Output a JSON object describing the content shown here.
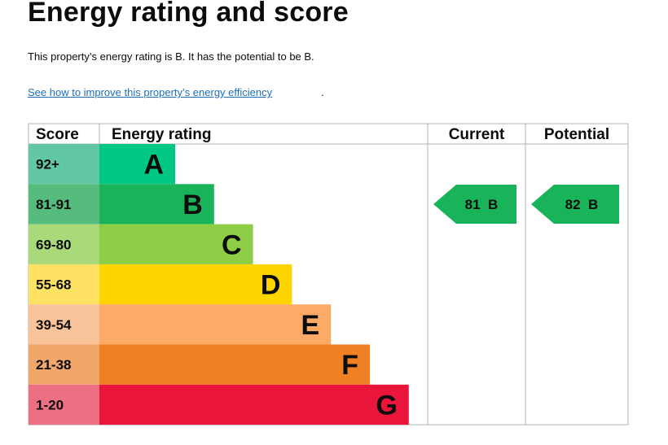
{
  "page": {
    "title": "Energy rating and score",
    "summary": "This property’s energy rating is B. It has the potential to be B.",
    "improve_link": "See how to improve this property’s energy efficiency",
    "link_trailing": "."
  },
  "chart_data": {
    "type": "bar",
    "headers": {
      "score": "Score",
      "rating": "Energy rating",
      "current": "Current",
      "potential": "Potential"
    },
    "bands": [
      {
        "score_range": "92+",
        "letter": "A",
        "color": "#00c781",
        "score_bg": "#62c8a4"
      },
      {
        "score_range": "81-91",
        "letter": "B",
        "color": "#19b459",
        "score_bg": "#55bc7e"
      },
      {
        "score_range": "69-80",
        "letter": "C",
        "color": "#8dce46",
        "score_bg": "#a9d978"
      },
      {
        "score_range": "55-68",
        "letter": "D",
        "color": "#ffd500",
        "score_bg": "#fde264"
      },
      {
        "score_range": "39-54",
        "letter": "E",
        "color": "#fcaa65",
        "score_bg": "#f9c399"
      },
      {
        "score_range": "21-38",
        "letter": "F",
        "color": "#ef8023",
        "score_bg": "#f1a66a"
      },
      {
        "score_range": "1-20",
        "letter": "G",
        "color": "#e9153b",
        "score_bg": "#ec6f84"
      }
    ],
    "current": {
      "score": 81,
      "band": "B",
      "label": "81  B",
      "color": "#19b459"
    },
    "potential": {
      "score": 82,
      "band": "B",
      "label": "82  B",
      "color": "#19b459"
    }
  }
}
